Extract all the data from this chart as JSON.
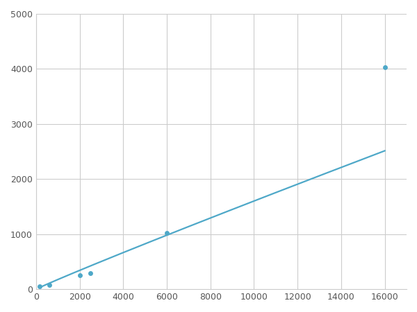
{
  "x": [
    156,
    625,
    2000,
    2500,
    6000,
    16000
  ],
  "y": [
    50,
    80,
    250,
    290,
    1020,
    4030
  ],
  "line_color": "#4ea8c8",
  "marker_color": "#4ea8c8",
  "marker_size": 5,
  "line_width": 1.6,
  "xlim": [
    0,
    17000
  ],
  "ylim": [
    0,
    5000
  ],
  "xticks": [
    0,
    2000,
    4000,
    6000,
    8000,
    10000,
    12000,
    14000,
    16000
  ],
  "yticks": [
    0,
    1000,
    2000,
    3000,
    4000,
    5000
  ],
  "grid_color": "#cccccc",
  "bg_color": "#ffffff",
  "fig_bg_color": "#ffffff"
}
